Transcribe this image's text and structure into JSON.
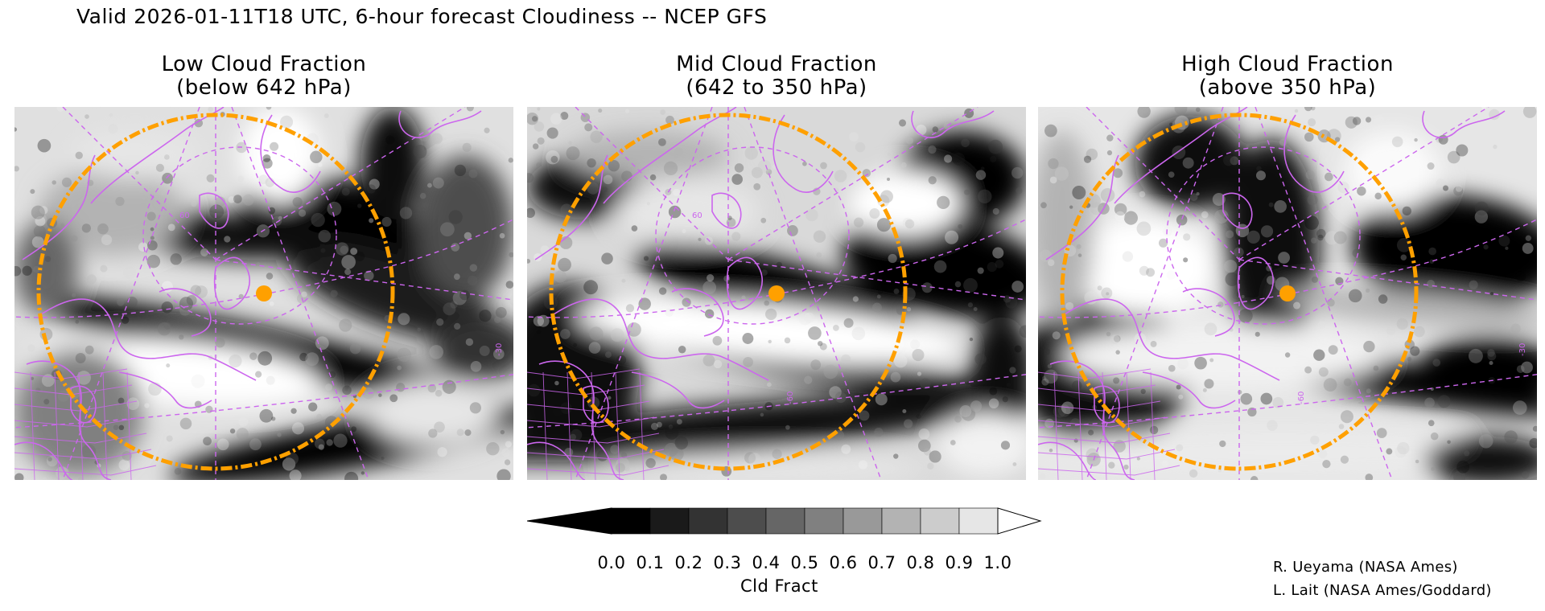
{
  "title": "Valid 2026-01-11T18 UTC, 6-hour forecast Cloudiness -- NCEP GFS",
  "panels": [
    {
      "id": "low",
      "title_line1": "Low Cloud Fraction",
      "title_line2": "(below 642 hPa)",
      "lat_label": "60",
      "lon_label": "",
      "lon_label_right": "-30"
    },
    {
      "id": "mid",
      "title_line1": "Mid Cloud Fraction",
      "title_line2": "(642 to 350 hPa)",
      "lat_label": "60",
      "lon_label": "-60",
      "lon_label_right": ""
    },
    {
      "id": "high",
      "title_line1": "High Cloud Fraction",
      "title_line2": "(above 350 hPa)",
      "lat_label": "",
      "lon_label": "-60",
      "lon_label_right": "-30"
    }
  ],
  "colorbar": {
    "label": "Cld Fract",
    "ticks": [
      "0.0",
      "0.1",
      "0.2",
      "0.3",
      "0.4",
      "0.5",
      "0.6",
      "0.7",
      "0.8",
      "0.9",
      "1.0"
    ],
    "colors": [
      "#000000",
      "#1a1a1a",
      "#333333",
      "#4d4d4d",
      "#666666",
      "#808080",
      "#999999",
      "#b3b3b3",
      "#cccccc",
      "#e6e6e6"
    ],
    "under_color": "#000000",
    "over_color": "#ffffff"
  },
  "credits": [
    "R. Ueyama (NASA Ames)",
    "L. Lait (NASA Ames/Goddard)"
  ],
  "colors": {
    "coastline": "#cc66ee",
    "range_ring": "#ffa000",
    "marker": "#ffa000"
  }
}
